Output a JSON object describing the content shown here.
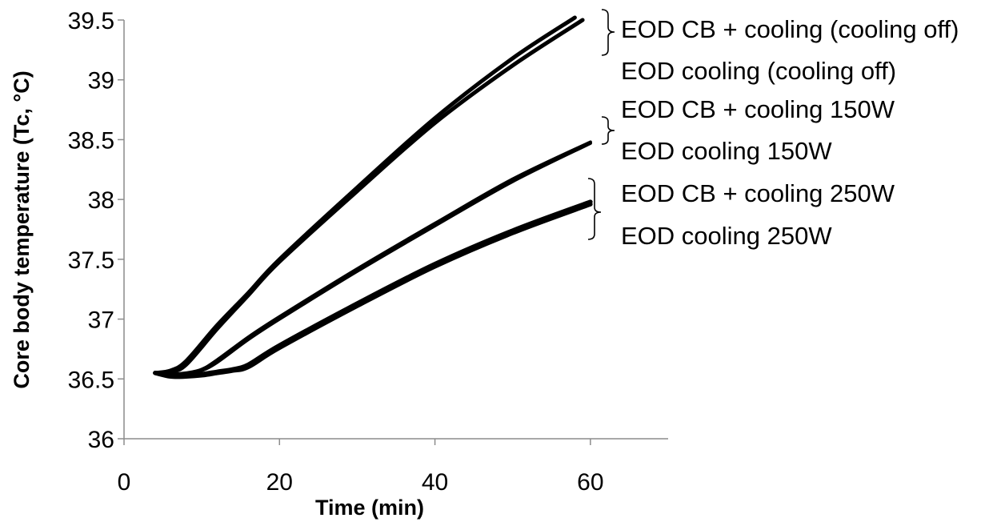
{
  "chart_data": {
    "type": "line",
    "title": "",
    "xlabel": "Time (min)",
    "ylabel": "Core body temperature (Tc, °C)",
    "xlim": [
      0,
      70
    ],
    "ylim": [
      36,
      39.5
    ],
    "x_ticks": [
      0,
      20,
      40,
      60
    ],
    "x_tick_labels": [
      "0",
      "20",
      "40",
      "60"
    ],
    "y_ticks": [
      36,
      36.5,
      37,
      37.5,
      38,
      38.5,
      39,
      39.5
    ],
    "y_tick_labels": [
      "36",
      "36.5",
      "37",
      "37.5",
      "38",
      "38.5",
      "39",
      "39.5"
    ],
    "grid": false,
    "legend_position": "right",
    "series": [
      {
        "name": "EOD CB + cooling (cooling off)",
        "color": "#000000",
        "x": [
          4,
          6,
          8,
          12,
          16,
          20,
          30,
          40,
          50,
          58
        ],
        "y": [
          36.55,
          36.57,
          36.65,
          36.95,
          37.22,
          37.5,
          38.1,
          38.68,
          39.18,
          39.52
        ]
      },
      {
        "name": "EOD cooling (cooling off)",
        "color": "#000000",
        "x": [
          4,
          6,
          8,
          12,
          16,
          20,
          30,
          40,
          50,
          59
        ],
        "y": [
          36.55,
          36.56,
          36.62,
          36.92,
          37.2,
          37.48,
          38.07,
          38.64,
          39.12,
          39.5
        ]
      },
      {
        "name": "EOD CB + cooling 150W",
        "color": "#000000",
        "x": [
          4,
          6,
          8,
          10,
          12,
          16,
          20,
          30,
          40,
          50,
          60
        ],
        "y": [
          36.55,
          36.54,
          36.55,
          36.58,
          36.66,
          36.85,
          37.02,
          37.42,
          37.8,
          38.17,
          38.48
        ]
      },
      {
        "name": "EOD cooling 150W",
        "color": "#000000",
        "x": [
          4,
          6,
          8,
          10,
          12,
          16,
          20,
          30,
          40,
          50,
          60
        ],
        "y": [
          36.55,
          36.54,
          36.54,
          36.57,
          36.64,
          36.83,
          37.0,
          37.4,
          37.78,
          38.15,
          38.47
        ]
      },
      {
        "name": "EOD CB + cooling 250W",
        "color": "#000000",
        "x": [
          4,
          6,
          8,
          10,
          12,
          14,
          16,
          20,
          30,
          40,
          50,
          60
        ],
        "y": [
          36.55,
          36.53,
          36.53,
          36.54,
          36.56,
          36.58,
          36.62,
          36.78,
          37.13,
          37.46,
          37.74,
          37.98
        ]
      },
      {
        "name": "EOD cooling 250W",
        "color": "#000000",
        "x": [
          4,
          6,
          8,
          10,
          12,
          14,
          16,
          20,
          30,
          40,
          50,
          60
        ],
        "y": [
          36.55,
          36.52,
          36.52,
          36.53,
          36.55,
          36.57,
          36.6,
          36.76,
          37.11,
          37.44,
          37.72,
          37.96
        ]
      }
    ]
  }
}
